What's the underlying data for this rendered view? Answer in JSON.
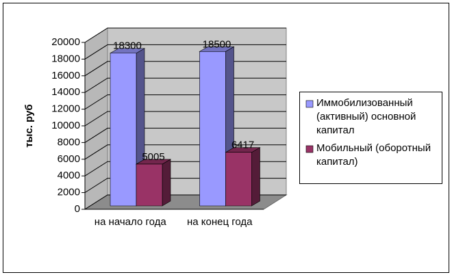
{
  "chart_data": {
    "type": "bar3d",
    "y_label": "тыс. руб",
    "categories": [
      "на начало года",
      "на конец года"
    ],
    "series": [
      {
        "name": "Иммобилизованный (активный) основной капитал",
        "color": "#9999ff",
        "values": [
          18300,
          18500
        ]
      },
      {
        "name": "Мобильный (оборотный капитал)",
        "color": "#993366",
        "values": [
          5005,
          6417
        ]
      }
    ],
    "ylim": [
      0,
      20000
    ],
    "yticks": [
      0,
      2000,
      4000,
      6000,
      8000,
      10000,
      12000,
      14000,
      16000,
      18000,
      20000
    ],
    "grid": true,
    "legend": "right"
  }
}
